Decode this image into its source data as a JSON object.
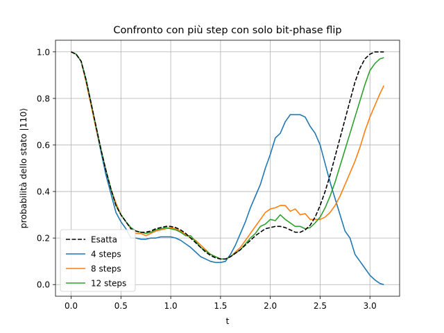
{
  "chart_data": {
    "type": "line",
    "title": "Confronto con più step con solo bit-phase flip",
    "xlabel": "t",
    "ylabel": "probabilità dello stato |110⟩",
    "xlim": [
      -0.157,
      3.298
    ],
    "ylim": [
      -0.05,
      1.05
    ],
    "xticks": [
      0.0,
      0.5,
      1.0,
      1.5,
      2.0,
      2.5,
      3.0
    ],
    "xtick_labels": [
      "0.0",
      "0.5",
      "1.0",
      "1.5",
      "2.0",
      "2.5",
      "3.0"
    ],
    "yticks": [
      0.0,
      0.2,
      0.4,
      0.6,
      0.8,
      1.0
    ],
    "ytick_labels": [
      "0.0",
      "0.2",
      "0.4",
      "0.6",
      "0.8",
      "1.0"
    ],
    "grid": true,
    "legend_position": "lower-left",
    "series": [
      {
        "name": "Esatta",
        "color": "#000000",
        "dash": "dashed",
        "x": [
          0.0,
          0.05,
          0.1,
          0.15,
          0.2,
          0.25,
          0.3,
          0.35,
          0.4,
          0.45,
          0.5,
          0.55,
          0.6,
          0.65,
          0.7,
          0.75,
          0.8,
          0.85,
          0.9,
          0.95,
          1.0,
          1.05,
          1.1,
          1.15,
          1.2,
          1.25,
          1.3,
          1.35,
          1.4,
          1.45,
          1.5,
          1.55,
          1.6,
          1.65,
          1.7,
          1.75,
          1.8,
          1.85,
          1.9,
          1.95,
          2.0,
          2.05,
          2.1,
          2.15,
          2.2,
          2.25,
          2.3,
          2.35,
          2.4,
          2.45,
          2.5,
          2.55,
          2.6,
          2.65,
          2.7,
          2.75,
          2.8,
          2.85,
          2.9,
          2.95,
          3.0,
          3.05,
          3.1,
          3.14
        ],
        "values": [
          1.0,
          0.99,
          0.96,
          0.88,
          0.78,
          0.68,
          0.58,
          0.49,
          0.41,
          0.34,
          0.3,
          0.27,
          0.24,
          0.23,
          0.225,
          0.225,
          0.23,
          0.24,
          0.245,
          0.25,
          0.25,
          0.245,
          0.235,
          0.22,
          0.2,
          0.18,
          0.16,
          0.14,
          0.125,
          0.115,
          0.11,
          0.11,
          0.12,
          0.135,
          0.15,
          0.17,
          0.19,
          0.21,
          0.225,
          0.24,
          0.245,
          0.25,
          0.25,
          0.245,
          0.235,
          0.225,
          0.225,
          0.235,
          0.255,
          0.29,
          0.34,
          0.4,
          0.47,
          0.55,
          0.63,
          0.71,
          0.79,
          0.87,
          0.93,
          0.97,
          0.99,
          1.0,
          1.0,
          1.0
        ]
      },
      {
        "name": "4 steps",
        "color": "#1f77b4",
        "dash": "solid",
        "x": [
          0.0,
          0.05,
          0.1,
          0.15,
          0.2,
          0.25,
          0.3,
          0.35,
          0.4,
          0.45,
          0.5,
          0.55,
          0.6,
          0.65,
          0.7,
          0.75,
          0.8,
          0.85,
          0.9,
          0.95,
          1.0,
          1.05,
          1.1,
          1.15,
          1.2,
          1.25,
          1.3,
          1.35,
          1.4,
          1.45,
          1.5,
          1.55,
          1.6,
          1.65,
          1.7,
          1.75,
          1.8,
          1.85,
          1.9,
          1.95,
          2.0,
          2.05,
          2.1,
          2.15,
          2.2,
          2.25,
          2.3,
          2.35,
          2.4,
          2.45,
          2.5,
          2.55,
          2.6,
          2.65,
          2.7,
          2.75,
          2.8,
          2.85,
          2.9,
          2.95,
          3.0,
          3.05,
          3.1,
          3.14
        ],
        "values": [
          1.0,
          0.99,
          0.96,
          0.88,
          0.78,
          0.67,
          0.57,
          0.47,
          0.39,
          0.31,
          0.27,
          0.24,
          0.2,
          0.2,
          0.195,
          0.195,
          0.2,
          0.2,
          0.205,
          0.205,
          0.205,
          0.2,
          0.19,
          0.175,
          0.16,
          0.14,
          0.12,
          0.11,
          0.1,
          0.095,
          0.095,
          0.1,
          0.13,
          0.17,
          0.22,
          0.27,
          0.33,
          0.38,
          0.43,
          0.5,
          0.56,
          0.63,
          0.65,
          0.7,
          0.73,
          0.73,
          0.73,
          0.72,
          0.68,
          0.65,
          0.6,
          0.52,
          0.44,
          0.37,
          0.3,
          0.23,
          0.2,
          0.13,
          0.1,
          0.07,
          0.04,
          0.02,
          0.005,
          0.0
        ]
      },
      {
        "name": "8 steps",
        "color": "#ff7f0e",
        "dash": "solid",
        "x": [
          0.0,
          0.05,
          0.1,
          0.15,
          0.2,
          0.25,
          0.3,
          0.35,
          0.4,
          0.45,
          0.5,
          0.55,
          0.6,
          0.65,
          0.7,
          0.75,
          0.8,
          0.85,
          0.9,
          0.95,
          1.0,
          1.05,
          1.1,
          1.15,
          1.2,
          1.25,
          1.3,
          1.35,
          1.4,
          1.45,
          1.5,
          1.55,
          1.6,
          1.65,
          1.7,
          1.75,
          1.8,
          1.85,
          1.9,
          1.95,
          2.0,
          2.05,
          2.1,
          2.15,
          2.2,
          2.25,
          2.3,
          2.35,
          2.4,
          2.45,
          2.5,
          2.55,
          2.6,
          2.65,
          2.7,
          2.75,
          2.8,
          2.85,
          2.9,
          2.95,
          3.0,
          3.05,
          3.1,
          3.14
        ],
        "values": [
          1.0,
          0.99,
          0.96,
          0.87,
          0.77,
          0.67,
          0.58,
          0.49,
          0.41,
          0.35,
          0.3,
          0.27,
          0.24,
          0.22,
          0.22,
          0.21,
          0.22,
          0.23,
          0.235,
          0.24,
          0.245,
          0.24,
          0.23,
          0.215,
          0.2,
          0.19,
          0.17,
          0.15,
          0.13,
          0.12,
          0.11,
          0.11,
          0.12,
          0.14,
          0.16,
          0.19,
          0.22,
          0.25,
          0.28,
          0.31,
          0.325,
          0.33,
          0.34,
          0.34,
          0.315,
          0.325,
          0.3,
          0.305,
          0.28,
          0.28,
          0.28,
          0.29,
          0.31,
          0.34,
          0.38,
          0.43,
          0.48,
          0.53,
          0.59,
          0.66,
          0.72,
          0.77,
          0.82,
          0.855
        ]
      },
      {
        "name": "12 steps",
        "color": "#2ca02c",
        "dash": "solid",
        "x": [
          0.0,
          0.05,
          0.1,
          0.15,
          0.2,
          0.25,
          0.3,
          0.35,
          0.4,
          0.45,
          0.5,
          0.55,
          0.6,
          0.65,
          0.7,
          0.75,
          0.8,
          0.85,
          0.9,
          0.95,
          1.0,
          1.05,
          1.1,
          1.15,
          1.2,
          1.25,
          1.3,
          1.35,
          1.4,
          1.45,
          1.5,
          1.55,
          1.6,
          1.65,
          1.7,
          1.75,
          1.8,
          1.85,
          1.9,
          1.95,
          2.0,
          2.05,
          2.1,
          2.15,
          2.2,
          2.25,
          2.3,
          2.35,
          2.4,
          2.45,
          2.5,
          2.55,
          2.6,
          2.65,
          2.7,
          2.75,
          2.8,
          2.85,
          2.9,
          2.95,
          3.0,
          3.05,
          3.1,
          3.14
        ],
        "values": [
          1.0,
          0.99,
          0.96,
          0.88,
          0.78,
          0.68,
          0.58,
          0.49,
          0.41,
          0.34,
          0.3,
          0.27,
          0.245,
          0.23,
          0.225,
          0.22,
          0.225,
          0.235,
          0.24,
          0.245,
          0.24,
          0.235,
          0.225,
          0.21,
          0.21,
          0.185,
          0.16,
          0.145,
          0.13,
          0.12,
          0.11,
          0.11,
          0.12,
          0.135,
          0.15,
          0.175,
          0.2,
          0.22,
          0.25,
          0.26,
          0.28,
          0.275,
          0.3,
          0.28,
          0.265,
          0.25,
          0.25,
          0.24,
          0.245,
          0.265,
          0.29,
          0.33,
          0.38,
          0.44,
          0.51,
          0.58,
          0.65,
          0.72,
          0.79,
          0.86,
          0.92,
          0.95,
          0.97,
          0.975
        ]
      }
    ]
  }
}
